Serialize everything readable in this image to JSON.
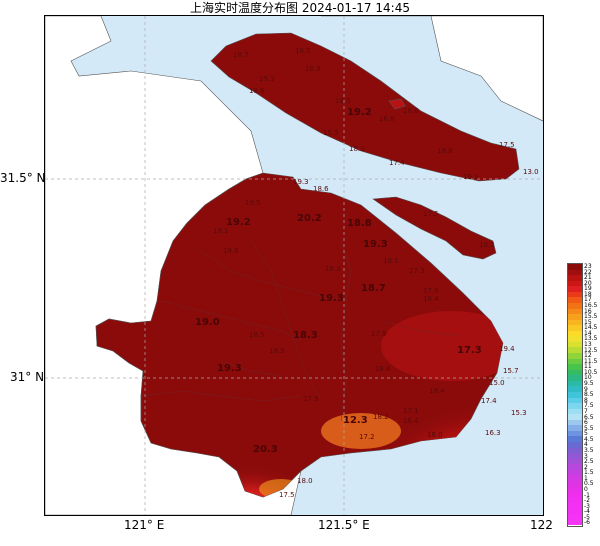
{
  "title": "上海实时温度分布图 2024-01-17 14:45",
  "axes": {
    "y_ticks": [
      {
        "label": "31.5° N"
      },
      {
        "label": "31° N"
      }
    ],
    "x_ticks": [
      {
        "label": "121° E"
      },
      {
        "label": "121.5° E"
      },
      {
        "label": "122"
      }
    ]
  },
  "colors": {
    "sea": "#d4e9f7",
    "land_outside": "#ffffff",
    "hot": "#8b0b0b",
    "warm": "#c81414",
    "orange": "#ee5a1a"
  },
  "temperature_labels": [
    "18.7",
    "18.5",
    "18.9",
    "19.3",
    "18.6",
    "18.5",
    "19.2",
    "18.8",
    "16.8",
    "15.3",
    "18.3",
    "18.8",
    "17.5",
    "13.0",
    "19.3",
    "17.4",
    "19.3",
    "18.6",
    "19.5",
    "20.2",
    "19.2",
    "18.8",
    "17.5",
    "18.2",
    "19.3",
    "18.1",
    "17.3",
    "18.3",
    "19.8",
    "18.7",
    "19.3",
    "17.9",
    "18.4",
    "19.0",
    "18.3",
    "17.9",
    "17.3",
    "19.4",
    "15.7",
    "18.6",
    "15.0",
    "17.4",
    "15.3",
    "18.4",
    "16.3",
    "12.3",
    "17.1",
    "16.4",
    "18.2",
    "17.2",
    "18.0",
    "19.3",
    "18.5",
    "18.9",
    "20.3",
    "19.1",
    "17.5",
    "18.0",
    "17.9"
  ],
  "legend": {
    "ticks": [
      "23",
      "22",
      "21",
      "20",
      "19",
      "18",
      "17",
      "16.5",
      "16",
      "15.5",
      "15",
      "14.5",
      "14",
      "13.5",
      "13",
      "12.5",
      "12",
      "11.5",
      "11",
      "10.5",
      "10",
      "9.5",
      "9",
      "8.5",
      "8",
      "7.5",
      "7",
      "6.5",
      "6",
      "5.5",
      "5",
      "4.5",
      "4",
      "3.5",
      "3",
      "2.5",
      "2",
      "1.5",
      "1",
      "0.5",
      "0",
      "-1",
      "-2",
      "-3",
      "-4",
      "-5",
      "-6"
    ],
    "colors": [
      "#8b0b0b",
      "#a00e0e",
      "#b81212",
      "#cc1717",
      "#de2020",
      "#ea3a1a",
      "#f05a14",
      "#f27316",
      "#f58a18",
      "#f7a01c",
      "#f9b520",
      "#fac824",
      "#fbda28",
      "#f0e030",
      "#d8e030",
      "#b8dc34",
      "#90d43a",
      "#6acc42",
      "#48c44c",
      "#34bc64",
      "#2cb884",
      "#2cbaa4",
      "#30bcc4",
      "#40c4dc",
      "#5ccde8",
      "#7cd6ee",
      "#9cdff2",
      "#b4e3f5",
      "#9cc8ee",
      "#84aee8",
      "#6c94e0",
      "#5a7ad8",
      "#6a6ad4",
      "#7e60d4",
      "#9258d4",
      "#a450d8",
      "#b648dc",
      "#c440e0",
      "#d23ae2",
      "#de34e4",
      "#e830e8",
      "#ee30ee",
      "#f230f2",
      "#f430f4",
      "#f530f5",
      "#f632f6",
      "#f735f7"
    ]
  }
}
